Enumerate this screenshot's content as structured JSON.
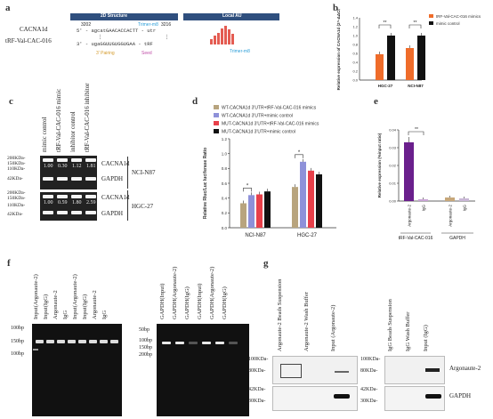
{
  "panels": {
    "a": "a",
    "b": "b",
    "c": "c",
    "d": "d",
    "e": "e",
    "f": "f",
    "g": "g"
  },
  "panel_a": {
    "gene1": "CACNA1d",
    "gene2": "tRF-Val-CAC-016",
    "struct_title": "2D Structure",
    "local_title": "Local AU",
    "num_left": "3202",
    "num_right": "3216",
    "seq_top": "5' - agcatGAACACCACTT - utr",
    "seq_bot": "3' - ugaGGUUGUGGUGAA - tRF",
    "annot_top": "Trimer-m8",
    "pairing": "3' Pairing",
    "seed": "Seed",
    "trimer2": "Trimer-m8"
  },
  "western": {
    "columns": [
      "mimic control",
      "tRF-Val-CAC-016 mimic",
      "inhibitor control",
      "tRF-Val-CAC-016 inhibitor"
    ],
    "markers_top": [
      "200KDa-",
      "150KDa-",
      "110KDa-",
      "42KDa-"
    ],
    "markers_bot": [
      "200KDa-",
      "150KDa-",
      "110KDa-",
      "42KDa-"
    ],
    "vals_top": [
      "1.00",
      "0.30",
      "1.12",
      "1.81"
    ],
    "vals_bot": [
      "1.00",
      "0.59",
      "1.80",
      "2.59"
    ],
    "band1": "CACNA1d",
    "band2": "GAPDH",
    "cell1": "NCI-N87",
    "cell2": "HGC-27"
  },
  "gel_f": {
    "left_lanes": [
      "Input(Argonaute-2)",
      "Input(IgG)",
      "Argonaute-2",
      "IgG",
      "Input(Argonaute-2)",
      "Input(IgG)",
      "Argonaute-2",
      "IgG"
    ],
    "left_markers": [
      "100bp",
      "150bp",
      "100bp"
    ],
    "right_lanes": [
      "GAPDH(Input)",
      "GAPDH(Argonaute-2)",
      "GAPDH(IgG)",
      "GAPDH(Input)",
      "GAPDH(Argonaute-2)",
      "GAPDH(IgG)"
    ],
    "right_markers": [
      "50bp",
      "100bp",
      "150bp",
      "200bp"
    ]
  },
  "blot_g": {
    "left_lanes": [
      "Argonaute-2 Beads Suspension",
      "Argonaute-2 Wash Buffer",
      "Input (Argonaute-2)"
    ],
    "right_lanes": [
      "IgG Beads Suspension",
      "IgG Wash Buffer",
      "Input (IgG)"
    ],
    "left_markers": [
      "100KDa-",
      "80KDa-",
      "42KDa-",
      "30KDa-"
    ],
    "right_markers": [
      "100KDa-",
      "80KDa-",
      "42KDa-",
      "30KDa-"
    ],
    "band1": "Argonaute-2",
    "band2": "GAPDH"
  },
  "chart_data": [
    {
      "type": "bar",
      "panel": "b",
      "categories": [
        "HGC-27",
        "NCI-N87"
      ],
      "series": [
        {
          "name": "tRF-Val-CAC-016 mimics",
          "values": [
            0.58,
            0.72
          ],
          "color": "#ef6c2a"
        },
        {
          "name": "mimic control",
          "values": [
            1.0,
            1.0
          ],
          "color": "#111111"
        }
      ],
      "ylabel": "Relative expression of CACNA1d (2^-ΔΔCt)",
      "yticks": [
        "0.0",
        "0.2",
        "0.4",
        "0.6",
        "0.8",
        "1.0",
        "1.2",
        "1.4"
      ],
      "ylim": [
        0,
        1.4
      ],
      "sig": [
        "**",
        "**"
      ]
    },
    {
      "type": "bar",
      "panel": "d",
      "categories": [
        "NCI-N87",
        "HGC-27"
      ],
      "series": [
        {
          "name": "WT-CACNA1d 3'UTR+tRF-Val-CAC-016 mimics",
          "values": [
            0.33,
            0.55
          ],
          "color": "#b8a47e"
        },
        {
          "name": "WT-CACNA1d 3'UTR+mimic control",
          "values": [
            0.44,
            0.89
          ],
          "color": "#8e91d9"
        },
        {
          "name": "MUT-CACNA1d 3'UTR+tRF-Val-CAC-016 mimics",
          "values": [
            0.45,
            0.77
          ],
          "color": "#e8404a"
        },
        {
          "name": "MUT-CACNA1d 3'UTR+mimic control",
          "values": [
            0.49,
            0.72
          ],
          "color": "#111111"
        }
      ],
      "ylabel": "Relative Rluc/Luc luciferase Ratio",
      "yticks": [
        "0.0",
        "0.2",
        "0.4",
        "0.6",
        "0.8",
        "1.0",
        "1.2"
      ],
      "ylim": [
        0,
        1.2
      ],
      "sig": [
        "*",
        "*"
      ]
    },
    {
      "type": "bar",
      "panel": "e",
      "categories": [
        "Argonaute-2",
        "IgG",
        "Argonaute-2",
        "IgG"
      ],
      "groups": [
        "tRF-Val-CAC-016",
        "GAPDH"
      ],
      "values": [
        0.033,
        0.001,
        0.002,
        0.0015
      ],
      "colors": [
        "#6a1f8c",
        "#c9a4d6",
        "#c7a77a",
        "#c9b6d6"
      ],
      "ylabel": "Relative expression (%input ratio)",
      "yticks": [
        "0.00",
        "0.01",
        "0.02",
        "0.03",
        "0.04"
      ],
      "ylim": [
        0,
        0.04
      ],
      "sig": [
        "**"
      ]
    }
  ]
}
